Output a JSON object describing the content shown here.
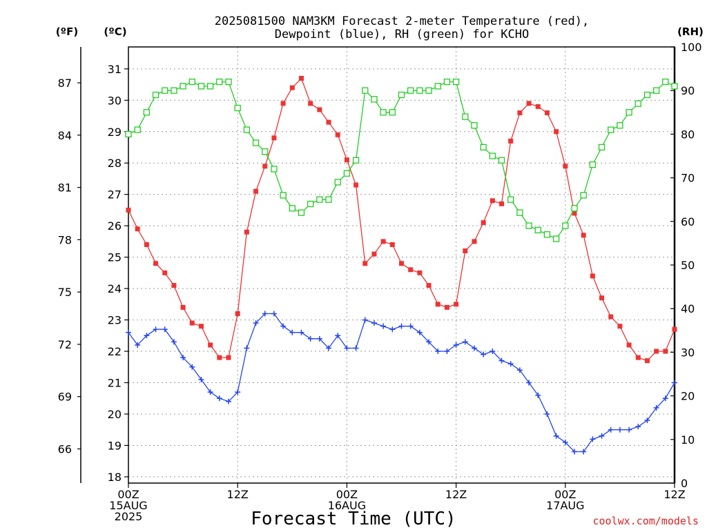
{
  "chart_data": {
    "type": "line",
    "title_line1": "2025081500 NAM3KM Forecast 2-meter Temperature (red),",
    "title_line2": "Dewpoint (blue), RH (green) for KCHO",
    "unit_f": "(ºF)",
    "unit_c": "(ºC)",
    "unit_rh": "(RH)",
    "xlabel": "Forecast Time (UTC)",
    "credit": "coolwx.com/models",
    "x_ticks": [
      {
        "hour": 0,
        "lines": [
          "00Z",
          "15AUG",
          "2025"
        ]
      },
      {
        "hour": 12,
        "lines": [
          "12Z"
        ]
      },
      {
        "hour": 24,
        "lines": [
          "00Z",
          "16AUG"
        ]
      },
      {
        "hour": 36,
        "lines": [
          "12Z"
        ]
      },
      {
        "hour": 48,
        "lines": [
          "00Z",
          "17AUG"
        ]
      },
      {
        "hour": 60,
        "lines": [
          "12Z"
        ]
      }
    ],
    "xlim": [
      0,
      60
    ],
    "ylim_c": [
      17.8,
      31.7
    ],
    "yticks_c": [
      18,
      19,
      20,
      21,
      22,
      23,
      24,
      25,
      26,
      27,
      28,
      29,
      30,
      31
    ],
    "ylim_rh": [
      0,
      100
    ],
    "yticks_rh": [
      0,
      10,
      20,
      30,
      40,
      50,
      60,
      70,
      80,
      90,
      100
    ],
    "yticks_f": [
      66,
      69,
      72,
      75,
      78,
      81,
      84,
      87
    ],
    "grid": true,
    "series": [
      {
        "name": "Temperature",
        "color": "#ee3333",
        "marker": "filled-square",
        "axis": "c",
        "x": [
          0,
          1,
          2,
          3,
          4,
          5,
          6,
          7,
          8,
          9,
          10,
          11,
          12,
          13,
          14,
          15,
          16,
          17,
          18,
          19,
          20,
          21,
          22,
          23,
          24,
          25,
          26,
          27,
          28,
          29,
          30,
          31,
          32,
          33,
          34,
          35,
          36,
          37,
          38,
          39,
          40,
          41,
          42,
          43,
          44,
          45,
          46,
          47,
          48,
          49,
          50,
          51,
          52,
          53,
          54,
          55,
          56,
          57,
          58,
          59,
          60
        ],
        "values": [
          26.5,
          25.9,
          25.4,
          24.8,
          24.5,
          24.1,
          23.4,
          22.9,
          22.8,
          22.2,
          21.8,
          21.8,
          23.2,
          25.8,
          27.1,
          27.9,
          28.8,
          29.9,
          30.4,
          30.7,
          29.9,
          29.7,
          29.3,
          28.9,
          28.1,
          27.3,
          24.8,
          25.1,
          25.5,
          25.4,
          24.8,
          24.6,
          24.5,
          24.1,
          23.5,
          23.4,
          23.5,
          25.2,
          25.5,
          26.1,
          26.8,
          26.7,
          28.7,
          29.6,
          29.9,
          29.8,
          29.6,
          29.0,
          27.9,
          26.4,
          25.7,
          24.4,
          23.7,
          23.1,
          22.8,
          22.2,
          21.8,
          21.7,
          22.0,
          22.0,
          22.7
        ]
      },
      {
        "name": "Dewpoint",
        "color": "#2244ee",
        "marker": "plus",
        "axis": "c",
        "x": [
          0,
          1,
          2,
          3,
          4,
          5,
          6,
          7,
          8,
          9,
          10,
          11,
          12,
          13,
          14,
          15,
          16,
          17,
          18,
          19,
          20,
          21,
          22,
          23,
          24,
          25,
          26,
          27,
          28,
          29,
          30,
          31,
          32,
          33,
          34,
          35,
          36,
          37,
          38,
          39,
          40,
          41,
          42,
          43,
          44,
          45,
          46,
          47,
          48,
          49,
          50,
          51,
          52,
          53,
          54,
          55,
          56,
          57,
          58,
          59,
          60
        ],
        "values": [
          22.6,
          22.2,
          22.5,
          22.7,
          22.7,
          22.3,
          21.8,
          21.5,
          21.1,
          20.7,
          20.5,
          20.4,
          20.7,
          22.1,
          22.9,
          23.2,
          23.2,
          22.8,
          22.6,
          22.6,
          22.4,
          22.4,
          22.1,
          22.5,
          22.1,
          22.1,
          23.0,
          22.9,
          22.8,
          22.7,
          22.8,
          22.8,
          22.6,
          22.3,
          22.0,
          22.0,
          22.2,
          22.3,
          22.1,
          21.9,
          22.0,
          21.7,
          21.6,
          21.4,
          21.0,
          20.6,
          20.0,
          19.3,
          19.1,
          18.8,
          18.8,
          19.2,
          19.3,
          19.5,
          19.5,
          19.5,
          19.6,
          19.8,
          20.2,
          20.5,
          21.0
        ]
      },
      {
        "name": "RH",
        "color": "#22cc22",
        "marker": "open-square",
        "axis": "rh",
        "x": [
          0,
          1,
          2,
          3,
          4,
          5,
          6,
          7,
          8,
          9,
          10,
          11,
          12,
          13,
          14,
          15,
          16,
          17,
          18,
          19,
          20,
          21,
          22,
          23,
          24,
          25,
          26,
          27,
          28,
          29,
          30,
          31,
          32,
          33,
          34,
          35,
          36,
          37,
          38,
          39,
          40,
          41,
          42,
          43,
          44,
          45,
          46,
          47,
          48,
          49,
          50,
          51,
          52,
          53,
          54,
          55,
          56,
          57,
          58,
          59,
          60
        ],
        "values": [
          80,
          81,
          85,
          89,
          90,
          90,
          91,
          92,
          91,
          91,
          92,
          92,
          86,
          81,
          78,
          76,
          72,
          66,
          63,
          62,
          64,
          65,
          65,
          69,
          71,
          74,
          90,
          88,
          85,
          85,
          89,
          90,
          90,
          90,
          91,
          92,
          92,
          84,
          82,
          77,
          75,
          74,
          65,
          62,
          59,
          58,
          57,
          56,
          59,
          63,
          66,
          73,
          77,
          81,
          82,
          85,
          87,
          89,
          90,
          92,
          91
        ]
      }
    ]
  }
}
